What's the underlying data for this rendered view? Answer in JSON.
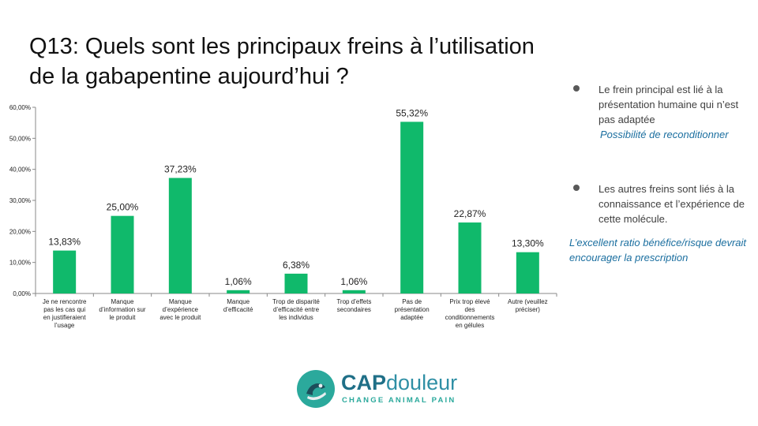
{
  "slide": {
    "title": "Q13: Quels sont les principaux freins à l’utilisation de la gabapentine aujourd’hui ?"
  },
  "colors": {
    "bar": "#10b96b",
    "accent_text": "#1a6e9f",
    "logo_teal": "#2ba99c"
  },
  "chart_data": {
    "type": "bar",
    "title": "",
    "xlabel": "",
    "ylabel": "",
    "ylim": [
      0,
      60
    ],
    "y_ticks": [
      "0,00%",
      "10,00%",
      "20,00%",
      "30,00%",
      "40,00%",
      "50,00%",
      "60,00%"
    ],
    "grid": false,
    "legend": "none",
    "categories": [
      "Je ne rencontre pas les cas qui en justifieraient l’usage",
      "Manque d’information sur le produit",
      "Manque d’expérience avec le produit",
      "Manque d’efficacité",
      "Trop de disparité d’efficacité entre les individus",
      "Trop d’effets secondaires",
      "Pas de présentation adaptée",
      "Prix trop élevé des conditionnements en gélules",
      "Autre (veuillez préciser)"
    ],
    "category_lines": [
      [
        "Je ne rencontre",
        "pas les cas qui",
        "en justifieraient",
        "l’usage"
      ],
      [
        "Manque",
        "d’information sur",
        "le produit"
      ],
      [
        "Manque",
        "d’expérience",
        "avec le produit"
      ],
      [
        "Manque",
        "d’efficacité"
      ],
      [
        "Trop de disparité",
        "d’efficacité entre",
        "les individus"
      ],
      [
        "Trop d’effets",
        "secondaires"
      ],
      [
        "Pas de",
        "présentation",
        "adaptée"
      ],
      [
        "Prix trop élevé",
        "des",
        "conditionnements",
        "en gélules"
      ],
      [
        "Autre (veuillez",
        "préciser)"
      ]
    ],
    "values": [
      13.83,
      25.0,
      37.23,
      1.06,
      6.38,
      1.06,
      55.32,
      22.87,
      13.3
    ],
    "data_labels": [
      "13,83%",
      "25,00%",
      "37,23%",
      "1,06%",
      "6,38%",
      "1,06%",
      "55,32%",
      "22,87%",
      "13,30%"
    ]
  },
  "bullets": [
    {
      "text": "Le frein principal est lié à la présentation humaine qui n’est pas adaptée",
      "note": "Possibilité de reconditionner"
    },
    {
      "text": "Les autres freins sont liés à la connaissance et l’expérience de cette molécule.",
      "note": ""
    }
  ],
  "conclusion": "L’excellent ratio bénéfice/risque devrait encourager la prescription",
  "logo": {
    "name_bold": "CAP",
    "name_light": "douleur",
    "tagline": "CHANGE ANIMAL PAIN"
  }
}
